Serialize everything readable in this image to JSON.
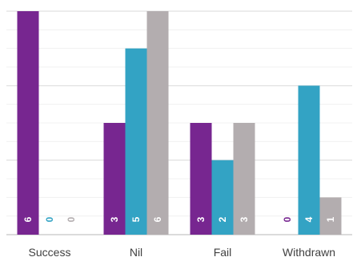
{
  "chart_data": {
    "type": "bar",
    "categories": [
      "Success",
      "Nil",
      "Fail",
      "Withdrawn"
    ],
    "series": [
      {
        "color": "#772690",
        "values": [
          6,
          3,
          3,
          0
        ]
      },
      {
        "color": "#33a3c4",
        "values": [
          0,
          5,
          2,
          4
        ]
      },
      {
        "color": "#b3adaf",
        "values": [
          0,
          6,
          3,
          1
        ]
      }
    ],
    "data_labels": {
      "light_color": "#ffffff",
      "zero_colors": [
        "#772690",
        "#33a3c4",
        "#b3adaf"
      ]
    },
    "ylim": [
      0,
      6
    ],
    "grid": true,
    "legend": "none"
  }
}
